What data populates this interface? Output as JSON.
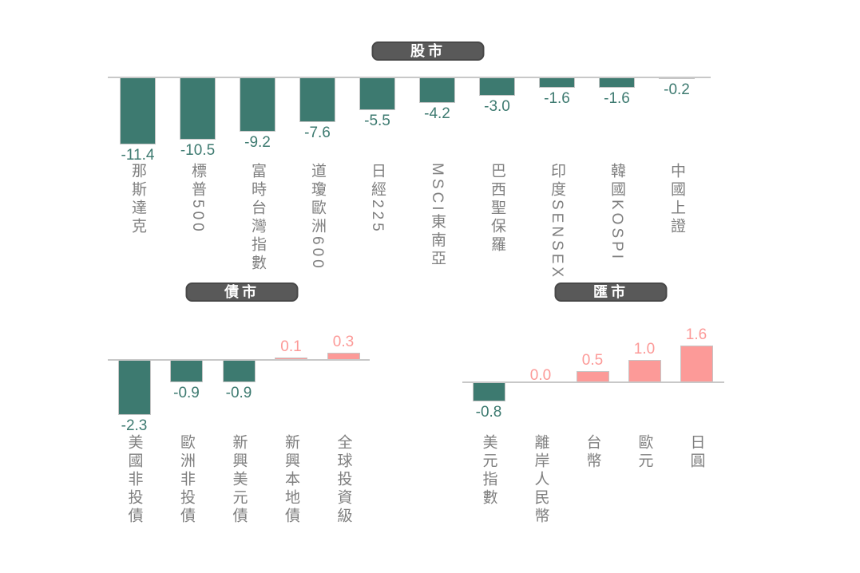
{
  "colors": {
    "negative_bar": "#3d7a70",
    "positive_bar": "#fc9a98",
    "axis_line": "#c8c8c8",
    "bar_border": "#c6c6c6",
    "badge_background": "#595959",
    "badge_border": "#484848",
    "badge_text": "#ffffff",
    "category_label": "#7f7f7f",
    "background": "#ffffff"
  },
  "chart_data": [
    {
      "id": "stock-market",
      "type": "bar",
      "title": "股市",
      "categories": [
        "那斯達克",
        "標普500",
        "富時台灣指數",
        "道瓊歐洲600",
        "日經225",
        "MSCI東南亞",
        "巴西聖保羅",
        "印度SENSEX",
        "韓國KOSPI",
        "中國上證"
      ],
      "values": [
        -11.4,
        -10.5,
        -9.2,
        -7.6,
        -5.5,
        -4.2,
        -3.0,
        -1.6,
        -1.6,
        -0.2
      ],
      "value_labels": [
        "-11.4",
        "-10.5",
        "-9.2",
        "-7.6",
        "-5.5",
        "-4.2",
        "-3.0",
        "-1.6",
        "-1.6",
        "-0.2"
      ],
      "xlabel": "",
      "ylabel": "",
      "ylim": [
        -12,
        0
      ],
      "grid": false,
      "legend": false,
      "value_label_position": "outside-end",
      "category_label_orientation": "vertical"
    },
    {
      "id": "bond-market",
      "type": "bar",
      "title": "債市",
      "categories": [
        "美國非投債",
        "歐洲非投債",
        "新興美元債",
        "新興本地債",
        "全球投資級"
      ],
      "values": [
        -2.3,
        -0.9,
        -0.9,
        0.1,
        0.3
      ],
      "value_labels": [
        "-2.3",
        "-0.9",
        "-0.9",
        "0.1",
        "0.3"
      ],
      "xlabel": "",
      "ylabel": "",
      "ylim": [
        -2.5,
        0.5
      ],
      "grid": false,
      "legend": false,
      "value_label_position": "outside-end",
      "category_label_orientation": "vertical"
    },
    {
      "id": "fx-market",
      "type": "bar",
      "title": "匯市",
      "categories": [
        "美元指數",
        "離岸人民幣",
        "台幣",
        "歐元",
        "日圓"
      ],
      "values": [
        -0.8,
        0.0,
        0.5,
        1.0,
        1.6
      ],
      "value_labels": [
        "-0.8",
        "0.0",
        "0.5",
        "1.0",
        "1.6"
      ],
      "xlabel": "",
      "ylabel": "",
      "ylim": [
        -1,
        2
      ],
      "grid": false,
      "legend": false,
      "value_label_position": "outside-end",
      "category_label_orientation": "vertical"
    }
  ]
}
